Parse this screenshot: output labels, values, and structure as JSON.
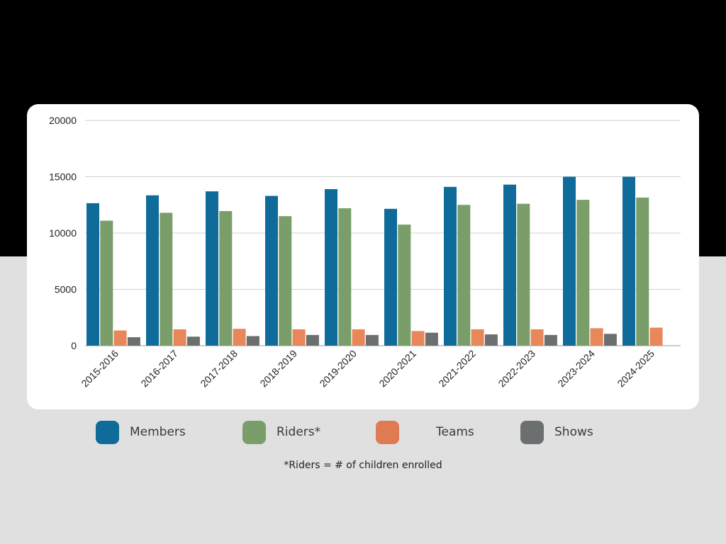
{
  "chart_data": {
    "type": "bar",
    "categories": [
      "2015-2016",
      "2016-2017",
      "2017-2018",
      "2018-2019",
      "2019-2020",
      "2020-2021",
      "2021-2022",
      "2022-2023",
      "2023-2024",
      "2024-2025"
    ],
    "series": [
      {
        "name": "Members",
        "color": "#0f6b99",
        "values": [
          12650,
          13350,
          13700,
          13300,
          13900,
          12150,
          14100,
          14300,
          15000,
          15000
        ]
      },
      {
        "name": "Riders*",
        "color": "#7a9e6a",
        "values": [
          11100,
          11800,
          11950,
          11500,
          12200,
          10750,
          12500,
          12600,
          12950,
          13150
        ]
      },
      {
        "name": "Teams",
        "color": "#e8875a",
        "values": [
          1350,
          1450,
          1500,
          1450,
          1450,
          1300,
          1450,
          1450,
          1550,
          1600
        ]
      },
      {
        "name": "Shows",
        "color": "#6b6f70",
        "values": [
          750,
          800,
          850,
          950,
          950,
          1150,
          1000,
          950,
          1050,
          0
        ]
      }
    ],
    "yticks": [
      0,
      5000,
      10000,
      15000,
      20000
    ],
    "ylim": [
      0,
      20000
    ],
    "grid": true,
    "legend_position": "bottom",
    "title": "",
    "xlabel": "",
    "ylabel": ""
  },
  "legend": {
    "items": [
      {
        "label": "Members",
        "color": "#0f6b99"
      },
      {
        "label": "Riders*",
        "color": "#7a9e6a"
      },
      {
        "label": "Teams",
        "color": "#e07a52"
      },
      {
        "label": "Shows",
        "color": "#6b6f70"
      }
    ]
  },
  "footnote": "*Riders = # of children enrolled"
}
